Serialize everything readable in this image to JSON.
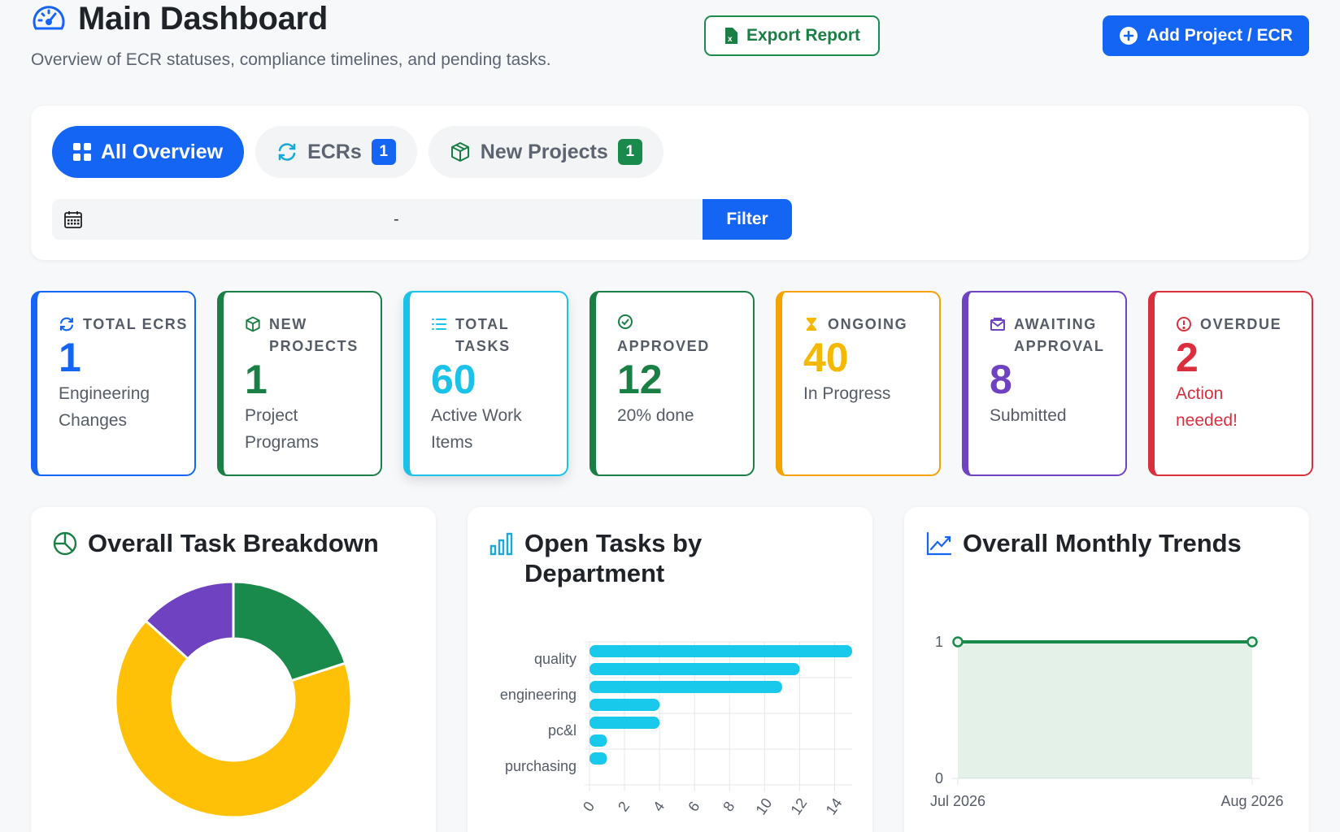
{
  "header": {
    "title": "Main Dashboard",
    "subtitle": "Overview of ECR statuses, compliance timelines, and pending tasks.",
    "export_label": "Export Report",
    "add_label": "Add Project / ECR"
  },
  "tabs": [
    {
      "label": "All Overview",
      "active": true
    },
    {
      "label": "ECRs",
      "badge": "1"
    },
    {
      "label": "New Projects",
      "badge": "1"
    }
  ],
  "date_filter": {
    "separator": "-",
    "filter_label": "Filter"
  },
  "stats": [
    {
      "label": "TOTAL ECRS",
      "value": "1",
      "sub": "Engineering Changes",
      "color": "#1565f5",
      "icon": "refresh-icon"
    },
    {
      "label": "NEW PROJECTS",
      "value": "1",
      "sub": "Project Programs",
      "color": "#1a7f45",
      "icon": "box-icon"
    },
    {
      "label": "TOTAL TASKS",
      "value": "60",
      "sub": "Active Work Items",
      "color": "#19c2e6",
      "icon": "list-icon"
    },
    {
      "label": "APPROVED",
      "value": "12",
      "sub": "20% done",
      "color": "#1a7f45",
      "icon": "check-circle-icon"
    },
    {
      "label": "ONGOING",
      "value": "40",
      "sub": "In Progress",
      "color": "#f5a300",
      "icon": "hourglass-icon"
    },
    {
      "label": "AWAITING APPROVAL",
      "value": "8",
      "sub": "Submitted",
      "color": "#6f42c1",
      "icon": "envelope-icon"
    },
    {
      "label": "OVERDUE",
      "value": "2",
      "sub": "Action needed!",
      "color": "#dc2f3e",
      "icon": "alert-circle-icon"
    }
  ],
  "panels": {
    "breakdown_title": "Overall Task Breakdown",
    "department_title": "Open Tasks by Department",
    "monthly_title": "Overall Monthly Trends"
  },
  "colors": {
    "primary": "#1565f5",
    "green": "#1a8a4c",
    "yellow": "#ffc107",
    "purple": "#6f42c1",
    "cyan": "#19c9ec"
  },
  "chart_data": [
    {
      "type": "pie",
      "title": "Overall Task Breakdown",
      "donut": true,
      "values": [
        12,
        40,
        8
      ],
      "colors": [
        "#1a8a4c",
        "#ffc107",
        "#6f42c1"
      ]
    },
    {
      "type": "bar",
      "orientation": "horizontal",
      "title": "Open Tasks by Department",
      "categories": [
        "quality",
        "",
        "engineering",
        "",
        "pc&l",
        "",
        "purchasing",
        ""
      ],
      "values": [
        15,
        12,
        11,
        4,
        4,
        1,
        1,
        0
      ],
      "xlim": [
        0,
        15
      ],
      "xticks": [
        0,
        2,
        4,
        6,
        8,
        10,
        12,
        14
      ],
      "grid": true,
      "color": "#19c9ec"
    },
    {
      "type": "area",
      "title": "Overall Monthly Trends",
      "x": [
        "Jul 2026",
        "Aug 2026"
      ],
      "values": [
        1,
        1
      ],
      "ylim": [
        0,
        1
      ],
      "yticks": [
        0,
        1
      ],
      "color": "#1a8a4c"
    }
  ]
}
